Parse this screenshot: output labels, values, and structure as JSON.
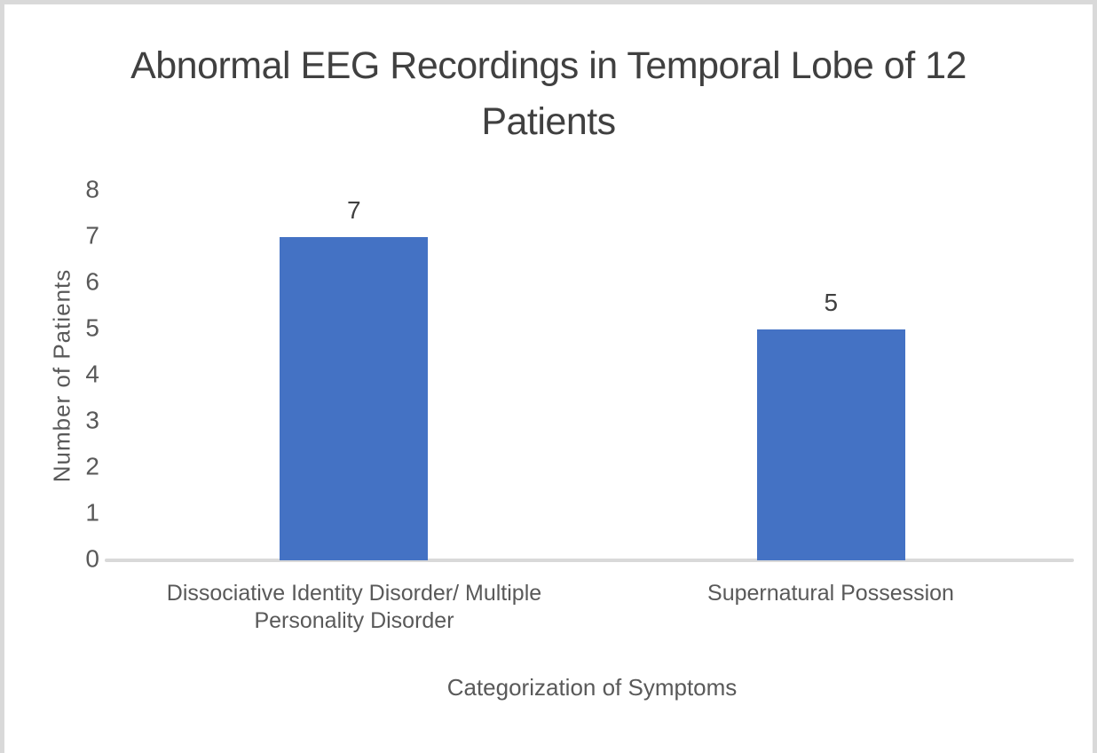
{
  "chart_data": {
    "type": "bar",
    "title": "Abnormal EEG Recordings in Temporal Lobe of 12 Patients",
    "categories": [
      "Dissociative Identity Disorder/ Multiple Personality Disorder",
      "Supernatural Possession"
    ],
    "values": [
      7,
      5
    ],
    "data_labels": [
      "7",
      "5"
    ],
    "xlabel": "Categorization of Symptoms",
    "ylabel": "Number of Patients",
    "ylim": [
      0,
      8
    ],
    "yticks": [
      0,
      1,
      2,
      3,
      4,
      5,
      6,
      7,
      8
    ],
    "grid": false,
    "legend": "none",
    "colors": {
      "bar": "#4472C4",
      "axis_line": "#D9D9D9",
      "title_text": "#404040",
      "label_text": "#595959",
      "frame_border": "#D9D9D9"
    }
  }
}
